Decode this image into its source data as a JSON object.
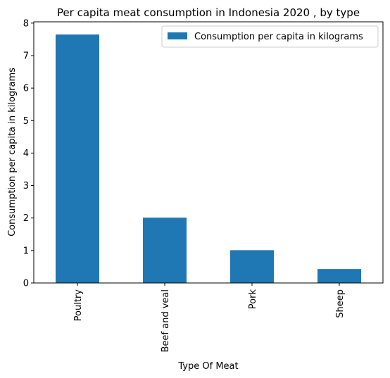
{
  "chart_data": {
    "type": "bar",
    "title": "Per capita meat consumption in Indonesia 2020 , by type",
    "xlabel": "Type Of Meat",
    "ylabel": "Consumption per capita in kilograms",
    "categories": [
      "Poultry",
      "Beef and veal",
      "Pork",
      "Sheep"
    ],
    "series": [
      {
        "name": "Consumption per capita in kilograms",
        "values": [
          7.65,
          2.01,
          1.01,
          0.43
        ],
        "color": "#1f77b4"
      }
    ],
    "ylim": [
      0,
      8.04
    ],
    "yticks": [
      0,
      1,
      2,
      3,
      4,
      5,
      6,
      7,
      8
    ],
    "grid": false,
    "legend_position": "top-right"
  }
}
